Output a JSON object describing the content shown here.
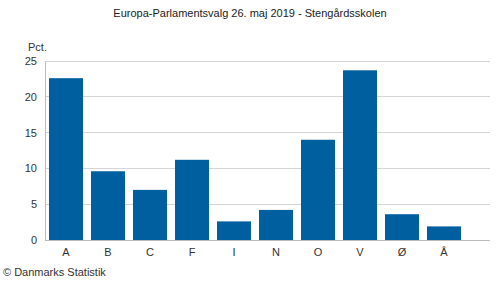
{
  "chart_data": {
    "type": "bar",
    "title": "Europa-Parlamentsvalg 26. maj 2019 - Stengårdsskolen",
    "y_label": "Pct.",
    "source": "© Danmarks Statistik",
    "categories": [
      "A",
      "B",
      "C",
      "F",
      "I",
      "N",
      "O",
      "V",
      "Ø",
      "Å"
    ],
    "values": [
      22.6,
      9.6,
      7.0,
      11.2,
      2.6,
      4.2,
      14.0,
      23.7,
      3.6,
      1.9
    ],
    "color": "#005f9e",
    "ylim": [
      0,
      25
    ],
    "yticks": [
      0,
      5,
      10,
      15,
      20,
      25
    ],
    "grid": true
  }
}
